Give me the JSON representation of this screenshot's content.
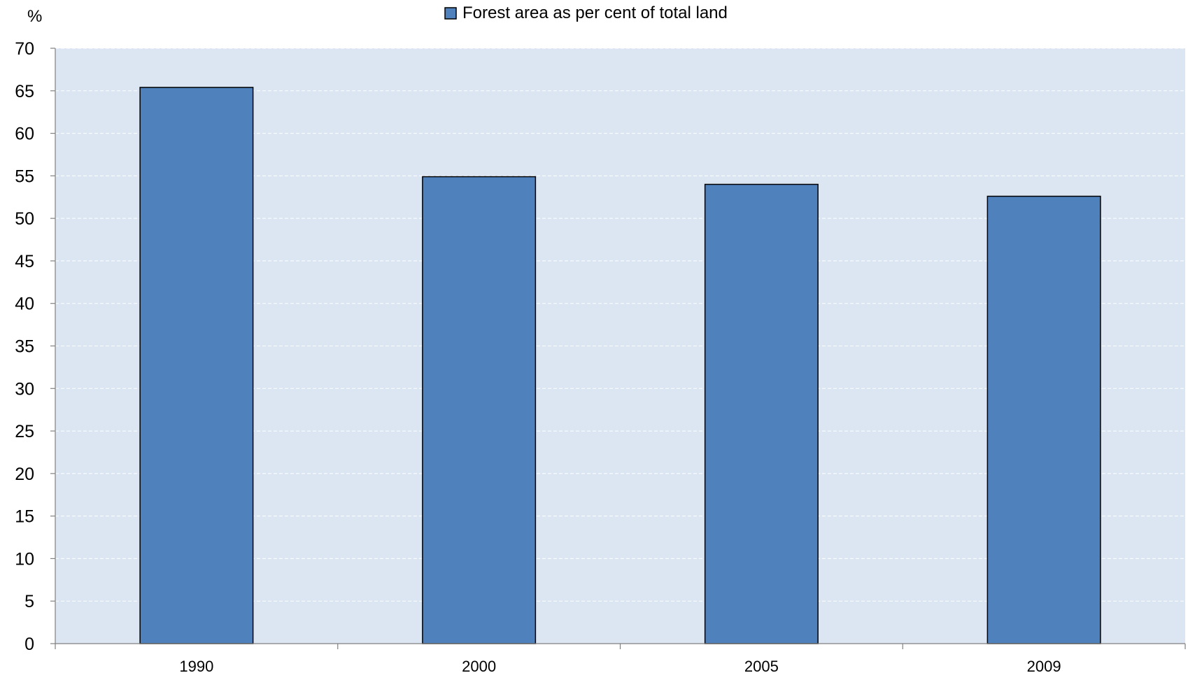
{
  "chart_data": {
    "type": "bar",
    "ylabel": "%",
    "legend_position": "top-center",
    "grid": true,
    "ylim": [
      0,
      70
    ],
    "yticks": [
      0,
      5,
      10,
      15,
      20,
      25,
      30,
      35,
      40,
      45,
      50,
      55,
      60,
      65,
      70
    ],
    "categories": [
      "1990",
      "2000",
      "2005",
      "2009"
    ],
    "series": [
      {
        "name": "Forest area as per cent of total land",
        "values": [
          65.4,
          54.9,
          54.0,
          52.6
        ]
      }
    ],
    "colors": {
      "bar_fill": "#4F81BD",
      "bar_stroke": "#000000",
      "plot_background": "#DCE6F2",
      "gridline": "#FFFFFF",
      "axis": "#808080"
    }
  }
}
